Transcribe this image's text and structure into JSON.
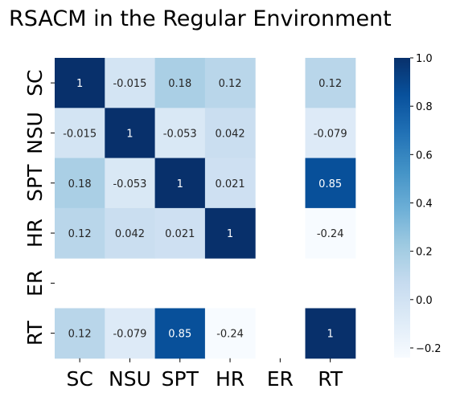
{
  "chart_data": {
    "type": "heatmap",
    "title": "RSACM in the Regular Environment",
    "row_labels": [
      "SC",
      "NSU",
      "SPT",
      "HR",
      "ER",
      "RT"
    ],
    "col_labels": [
      "SC",
      "NSU",
      "SPT",
      "HR",
      "ER",
      "RT"
    ],
    "values": [
      [
        1,
        -0.015,
        0.18,
        0.12,
        null,
        0.12
      ],
      [
        -0.015,
        1,
        -0.053,
        0.042,
        null,
        -0.079
      ],
      [
        0.18,
        -0.053,
        1,
        0.021,
        null,
        0.85
      ],
      [
        0.12,
        0.042,
        0.021,
        1,
        null,
        -0.24
      ],
      [
        null,
        null,
        null,
        null,
        null,
        null
      ],
      [
        0.12,
        -0.079,
        0.85,
        -0.24,
        null,
        1
      ]
    ],
    "annotations": [
      [
        "1",
        "-0.015",
        "0.18",
        "0.12",
        "",
        "0.12"
      ],
      [
        "-0.015",
        "1",
        "-0.053",
        "0.042",
        "",
        "-0.079"
      ],
      [
        "0.18",
        "-0.053",
        "1",
        "0.021",
        "",
        "0.85"
      ],
      [
        "0.12",
        "0.042",
        "0.021",
        "1",
        "",
        "-0.24"
      ],
      [
        "",
        "",
        "",
        "",
        "",
        ""
      ],
      [
        "0.12",
        "-0.079",
        "0.85",
        "-0.24",
        "",
        "1"
      ]
    ],
    "colormap": "Blues",
    "vmin": -0.24,
    "vmax": 1.0,
    "colorbar": {
      "ticks": [
        1.0,
        0.8,
        0.6,
        0.4,
        0.2,
        0.0,
        -0.2
      ],
      "tick_labels": [
        "1.0",
        "0.8",
        "0.6",
        "0.4",
        "0.2",
        "0.0",
        "−0.2"
      ]
    }
  }
}
